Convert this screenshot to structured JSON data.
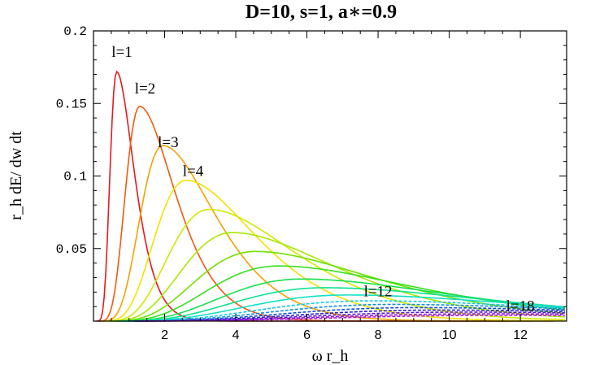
{
  "chart_data": {
    "type": "line",
    "title": "D=10, s=1, a∗=0.9",
    "xlabel": "ω r_h",
    "ylabel": "r_h dE/ dw dt",
    "xlim": [
      0,
      13.3
    ],
    "ylim": [
      0,
      0.2
    ],
    "x_ticks": [
      2,
      4,
      6,
      8,
      10,
      12
    ],
    "x_tick_labels": [
      "2",
      "4",
      "6",
      "8",
      "10",
      "12"
    ],
    "y_ticks": [
      0.05,
      0.1,
      0.15,
      0.2
    ],
    "y_tick_labels": [
      "0.05",
      "0.1",
      "0.15",
      "0.2"
    ],
    "grid": false,
    "series": [
      {
        "name": "l=1",
        "peak_x": 0.65,
        "peak_y": 0.172,
        "color": "#e31a1c",
        "dashed": false
      },
      {
        "name": "l=2",
        "peak_x": 1.3,
        "peak_y": 0.148,
        "color": "#f05a10",
        "dashed": false
      },
      {
        "name": "l=3",
        "peak_x": 1.95,
        "peak_y": 0.121,
        "color": "#f5a000",
        "dashed": false
      },
      {
        "name": "l=4",
        "peak_x": 2.6,
        "peak_y": 0.097,
        "color": "#f5e000",
        "dashed": false
      },
      {
        "name": "",
        "peak_x": 3.25,
        "peak_y": 0.077,
        "color": "#d0e800",
        "dashed": false
      },
      {
        "name": "",
        "peak_x": 3.9,
        "peak_y": 0.061,
        "color": "#a8e800",
        "dashed": false
      },
      {
        "name": "",
        "peak_x": 4.55,
        "peak_y": 0.048,
        "color": "#70e000",
        "dashed": false
      },
      {
        "name": "",
        "peak_x": 5.2,
        "peak_y": 0.038,
        "color": "#38e020",
        "dashed": false
      },
      {
        "name": "",
        "peak_x": 5.85,
        "peak_y": 0.029,
        "color": "#18e050",
        "dashed": false
      },
      {
        "name": "",
        "peak_x": 6.5,
        "peak_y": 0.023,
        "color": "#10e090",
        "dashed": false
      },
      {
        "name": "",
        "peak_x": 7.15,
        "peak_y": 0.018,
        "color": "#10e0c8",
        "dashed": false
      },
      {
        "name": "l=12",
        "peak_x": 7.8,
        "peak_y": 0.014,
        "color": "#10c8e8",
        "dashed": true
      },
      {
        "name": "",
        "peak_x": 8.45,
        "peak_y": 0.0115,
        "color": "#1090e0",
        "dashed": true
      },
      {
        "name": "",
        "peak_x": 9.1,
        "peak_y": 0.0093,
        "color": "#1050d8",
        "dashed": true
      },
      {
        "name": "",
        "peak_x": 9.75,
        "peak_y": 0.0076,
        "color": "#2a20d0",
        "dashed": true
      },
      {
        "name": "",
        "peak_x": 10.4,
        "peak_y": 0.0062,
        "color": "#5a18d8",
        "dashed": true
      },
      {
        "name": "",
        "peak_x": 11.05,
        "peak_y": 0.005,
        "color": "#8a18e0",
        "dashed": true
      },
      {
        "name": "l=18",
        "peak_x": 11.7,
        "peak_y": 0.004,
        "color": "#b018e0",
        "dashed": true
      }
    ],
    "annotations": [
      {
        "text": "l=1",
        "x": 0.8,
        "y": 0.182
      },
      {
        "text": "l=2",
        "x": 1.45,
        "y": 0.157
      },
      {
        "text": "l=3",
        "x": 2.1,
        "y": 0.12
      },
      {
        "text": "l=4",
        "x": 2.8,
        "y": 0.1
      },
      {
        "text": "l=12",
        "x": 8.0,
        "y": 0.017
      },
      {
        "text": "l=18",
        "x": 12.0,
        "y": 0.007
      }
    ]
  }
}
